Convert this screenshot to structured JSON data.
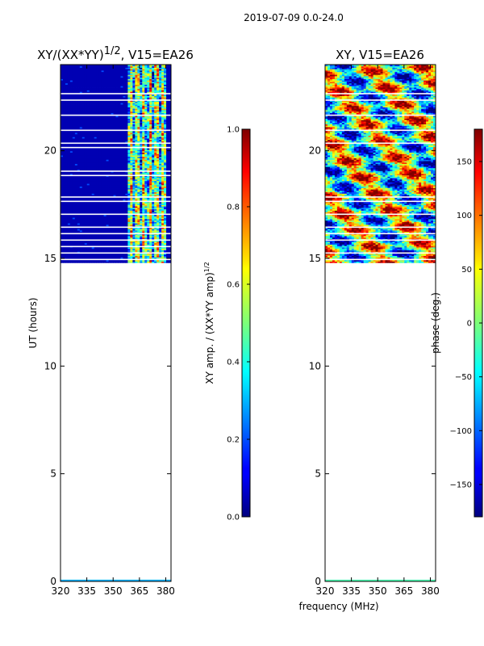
{
  "figure_title": "2019-07-09 0.0-24.0",
  "chart_data": [
    {
      "type": "heatmap",
      "title_base": "XY/(XX*YY)",
      "title_exponent": "1/2",
      "title_suffix": ", V15=EA26",
      "ylabel": "UT (hours)",
      "xlabel": "",
      "x_ticks": [
        "320",
        "335",
        "350",
        "365",
        "380"
      ],
      "x_tick_values": [
        320,
        335,
        350,
        365,
        380
      ],
      "y_ticks": [
        "0",
        "5",
        "10",
        "15",
        "20"
      ],
      "y_tick_values": [
        0,
        5,
        10,
        15,
        20
      ],
      "xlim": [
        320,
        383
      ],
      "ylim": [
        0,
        24
      ],
      "data_time_range": [
        14.8,
        24
      ],
      "low_band_range": [
        320,
        357
      ],
      "low_band_level": 0.05,
      "active_band_range": [
        358,
        380
      ],
      "colorbar": {
        "label_base": "XY amp. / (XX*YY amp)",
        "label_exponent": "1/2",
        "range": [
          0,
          1
        ],
        "ticks": [
          "0.0",
          "0.2",
          "0.4",
          "0.6",
          "0.8",
          "1.0"
        ],
        "tick_values": [
          0,
          0.2,
          0.4,
          0.6,
          0.8,
          1.0
        ]
      },
      "gap_rows_hours": [
        22.6,
        22.3,
        21.6,
        20.9,
        20.3,
        20.1,
        19.0,
        18.8,
        17.8,
        17.6,
        17.0,
        16.4,
        16.1,
        15.8,
        15.5,
        15.2,
        14.9
      ]
    },
    {
      "type": "heatmap",
      "title": "XY, V15=EA26",
      "xlabel": "frequency (MHz)",
      "ylabel": "",
      "x_ticks": [
        "320",
        "335",
        "350",
        "365",
        "380"
      ],
      "x_tick_values": [
        320,
        335,
        350,
        365,
        380
      ],
      "y_ticks": [
        "0",
        "5",
        "10",
        "15",
        "20"
      ],
      "y_tick_values": [
        0,
        5,
        10,
        15,
        20
      ],
      "xlim": [
        320,
        383
      ],
      "ylim": [
        0,
        24
      ],
      "data_time_range": [
        14.8,
        24
      ],
      "colorbar": {
        "label": "phase (deg.)",
        "range": [
          -180,
          180
        ],
        "ticks": [
          "150",
          "100",
          "50",
          "0",
          "−50",
          "−100",
          "−150"
        ],
        "tick_values": [
          150,
          100,
          50,
          0,
          -50,
          -100,
          -150
        ]
      },
      "gap_rows_hours": [
        22.6,
        22.3,
        21.6,
        20.9,
        20.3,
        17.8,
        17.6,
        17.0,
        16.4,
        16.1,
        15.8,
        15.2,
        14.9
      ]
    }
  ]
}
